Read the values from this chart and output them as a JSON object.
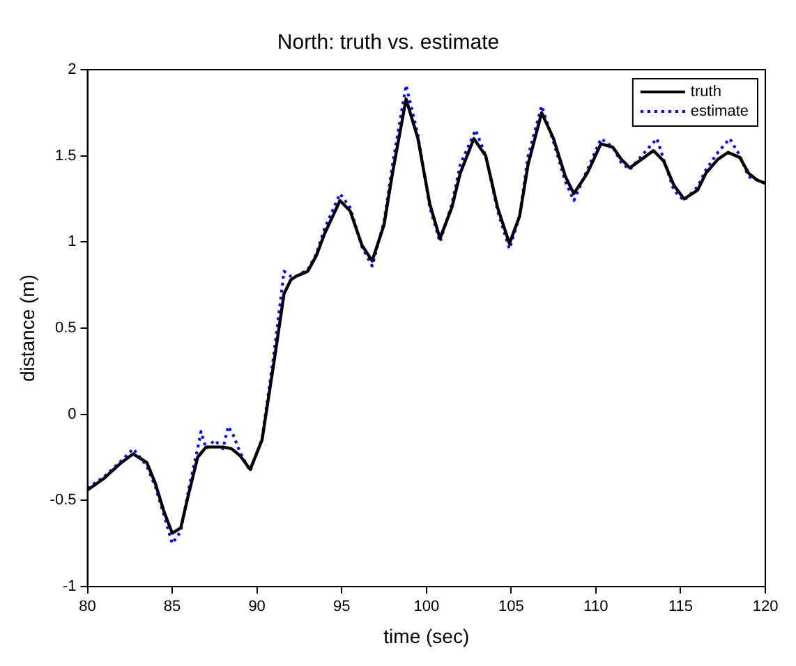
{
  "chart_data": {
    "type": "line",
    "title": "North: truth vs. estimate",
    "xlabel": "time (sec)",
    "ylabel": "distance (m)",
    "xlim": [
      80,
      120
    ],
    "xticks": [
      80,
      85,
      90,
      95,
      100,
      105,
      110,
      115,
      120
    ],
    "ylim": [
      -1,
      2
    ],
    "yticks": [
      -1,
      -0.5,
      0,
      0.5,
      1,
      1.5,
      2
    ],
    "grid": false,
    "legend": "top right",
    "marker": "none",
    "series": [
      {
        "name": "truth",
        "color": "#000000",
        "line_style": "solid",
        "x": [
          80,
          81,
          82,
          82.7,
          83.5,
          84,
          84.5,
          85,
          85.5,
          86,
          86.5,
          87,
          88,
          88.5,
          89,
          89.6,
          90.3,
          91,
          91.6,
          92,
          92.3,
          93,
          93.5,
          94,
          94.9,
          95.5,
          96.2,
          96.8,
          97.5,
          98,
          98.8,
          99.5,
          100.2,
          100.8,
          101.5,
          102,
          102.8,
          103.5,
          104.2,
          104.9,
          105.5,
          106,
          106.8,
          107.5,
          108.2,
          108.7,
          109.5,
          110.3,
          111,
          111.5,
          112,
          112.7,
          113.4,
          114,
          114.6,
          115.2,
          116,
          116.5,
          117.2,
          117.8,
          118.5,
          119,
          119.5,
          120
        ],
        "values": [
          -0.44,
          -0.37,
          -0.28,
          -0.23,
          -0.28,
          -0.4,
          -0.56,
          -0.69,
          -0.66,
          -0.45,
          -0.25,
          -0.19,
          -0.19,
          -0.2,
          -0.24,
          -0.32,
          -0.15,
          0.3,
          0.7,
          0.78,
          0.8,
          0.83,
          0.92,
          1.05,
          1.24,
          1.18,
          0.98,
          0.89,
          1.1,
          1.4,
          1.83,
          1.6,
          1.22,
          1.02,
          1.2,
          1.4,
          1.6,
          1.5,
          1.2,
          0.99,
          1.15,
          1.45,
          1.75,
          1.6,
          1.38,
          1.28,
          1.4,
          1.57,
          1.55,
          1.48,
          1.43,
          1.48,
          1.53,
          1.47,
          1.33,
          1.25,
          1.3,
          1.4,
          1.48,
          1.52,
          1.49,
          1.4,
          1.36,
          1.34
        ]
      },
      {
        "name": "estimate",
        "color": "#0000ff",
        "line_style": "dotted",
        "x": [
          80,
          81,
          82,
          82.7,
          83.5,
          84,
          84.5,
          85,
          85.5,
          86,
          86.5,
          86.7,
          87,
          87.5,
          88,
          88.3,
          88.6,
          89,
          89.6,
          90.3,
          91,
          91.6,
          92,
          92.3,
          93,
          93.5,
          94,
          94.9,
          95.5,
          96.2,
          96.8,
          97.5,
          98,
          98.8,
          99.5,
          100.2,
          100.8,
          101.5,
          102,
          102.9,
          103.5,
          104.2,
          104.9,
          105.5,
          106,
          106.8,
          107.5,
          108.2,
          108.7,
          109.5,
          110.3,
          111,
          111.5,
          112,
          112.7,
          113.6,
          114,
          114.6,
          115.2,
          116,
          116.5,
          117.2,
          117.9,
          118.5,
          119,
          119.5,
          120
        ],
        "values": [
          -0.43,
          -0.36,
          -0.27,
          -0.2,
          -0.3,
          -0.42,
          -0.58,
          -0.75,
          -0.68,
          -0.42,
          -0.2,
          -0.1,
          -0.2,
          -0.15,
          -0.2,
          -0.07,
          -0.12,
          -0.22,
          -0.33,
          -0.14,
          0.35,
          0.83,
          0.8,
          0.8,
          0.84,
          0.93,
          1.08,
          1.28,
          1.2,
          0.97,
          0.86,
          1.12,
          1.45,
          1.91,
          1.62,
          1.2,
          1.0,
          1.22,
          1.45,
          1.65,
          1.5,
          1.18,
          0.96,
          1.15,
          1.5,
          1.79,
          1.58,
          1.35,
          1.24,
          1.42,
          1.6,
          1.55,
          1.46,
          1.42,
          1.5,
          1.6,
          1.48,
          1.3,
          1.24,
          1.32,
          1.42,
          1.52,
          1.6,
          1.5,
          1.38,
          1.36,
          1.34
        ]
      }
    ]
  }
}
